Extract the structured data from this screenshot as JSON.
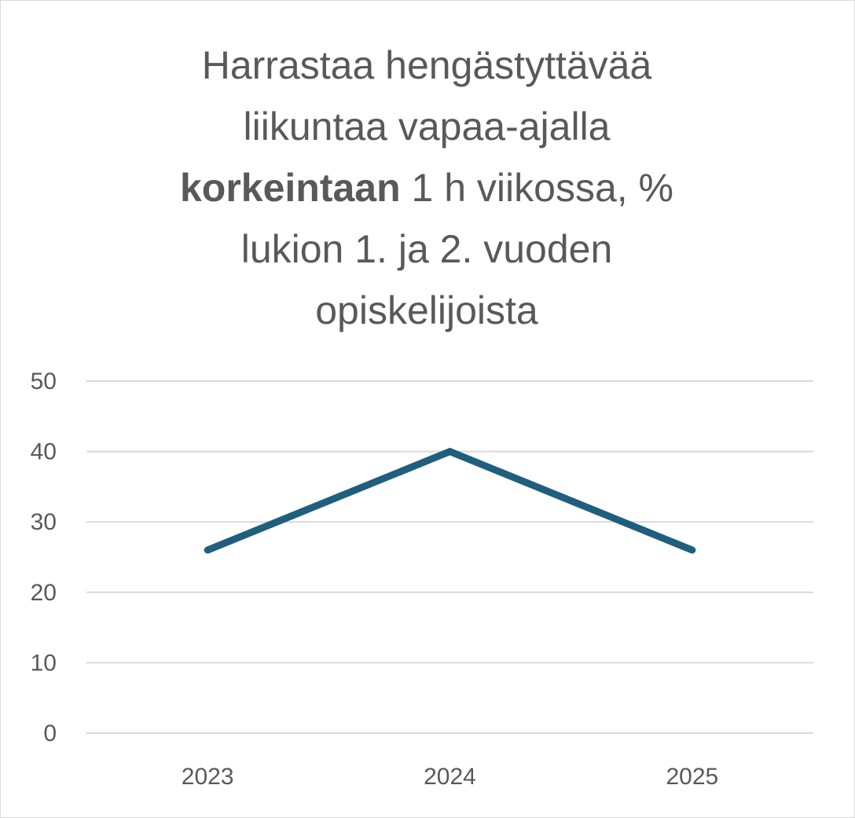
{
  "chart_data": {
    "type": "line",
    "title": {
      "line1": "Harrastaa hengästyttävää",
      "line2": "liikuntaa vapaa-ajalla",
      "line3_bold": "korkeintaan",
      "line3_rest": " 1 h viikossa, %",
      "line4": "lukion 1. ja 2. vuoden",
      "line5": "opiskelijoista"
    },
    "categories": [
      "2023",
      "2024",
      "2025"
    ],
    "series": [
      {
        "values": [
          26,
          40,
          26
        ],
        "color": "#1f5e7e"
      }
    ],
    "ylim": [
      0,
      50
    ],
    "yticks": [
      "0",
      "10",
      "20",
      "30",
      "40",
      "50"
    ],
    "grid": true,
    "legend": "none",
    "gridline_color": "#d9d9d9",
    "text_color": "#595959"
  }
}
